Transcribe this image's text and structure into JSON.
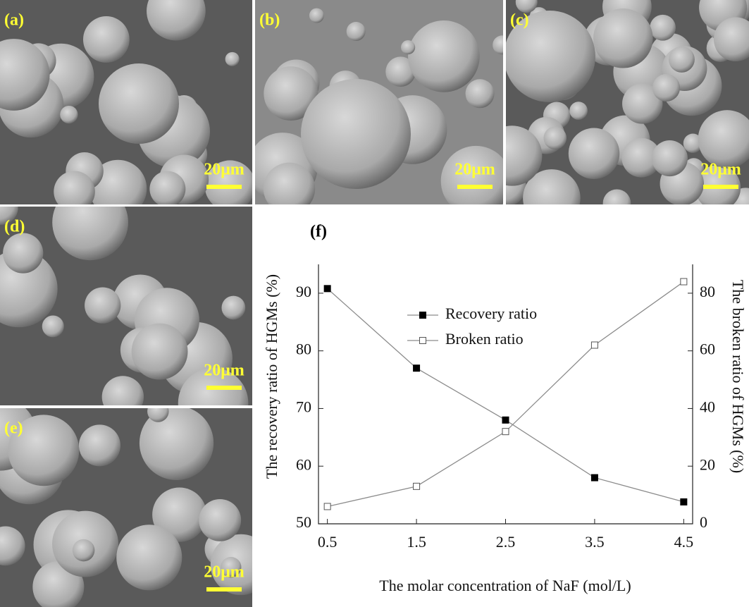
{
  "panels": [
    {
      "label": "(a)",
      "scale_bar": "20μm"
    },
    {
      "label": "(b)",
      "scale_bar": "20μm"
    },
    {
      "label": "(c)",
      "scale_bar": "20μm"
    },
    {
      "label": "(d)",
      "scale_bar": "20μm"
    },
    {
      "label": "(e)",
      "scale_bar": "20μm"
    }
  ],
  "chart_data": {
    "type": "line",
    "title": "(f)",
    "x_label": "The molar concentration of NaF (mol/L)",
    "y_label": "The recovery ratio of HGMs (%)",
    "y2_label": "The broken ratio of HGMs (%)",
    "x": [
      0.5,
      1.5,
      2.5,
      3.5,
      4.5
    ],
    "xlim": [
      0.4,
      4.6
    ],
    "xticks": [
      0.5,
      1.5,
      2.5,
      3.5,
      4.5
    ],
    "ylim": [
      50,
      95
    ],
    "yticks": [
      50,
      60,
      70,
      80,
      90
    ],
    "y2lim": [
      0,
      90
    ],
    "y2ticks": [
      0,
      20,
      40,
      60,
      80
    ],
    "series": [
      {
        "name": "Recovery ratio",
        "color": "#000000",
        "line_color": "#8c8c8c",
        "values": [
          90.8,
          77,
          68,
          58,
          53.8
        ]
      },
      {
        "name": "Broken ratio",
        "color": "#ffffff",
        "line_color": "#8c8c8c",
        "values": [
          6,
          13,
          32,
          62,
          84
        ],
        "axis": "y2"
      }
    ]
  }
}
